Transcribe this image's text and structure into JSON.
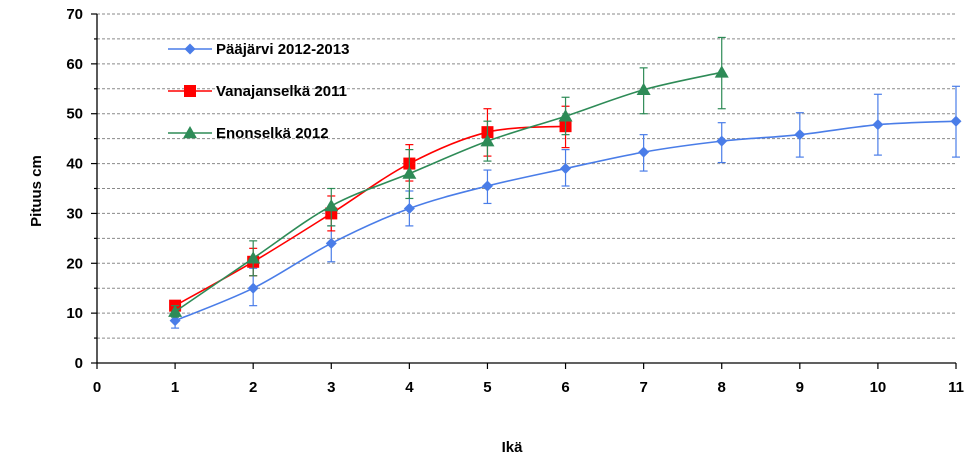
{
  "chart_data": {
    "type": "line",
    "title": "",
    "xlabel": "Ikä",
    "ylabel": "Pituus cm",
    "xlim": [
      0,
      11
    ],
    "ylim": [
      0,
      70
    ],
    "x_ticks": [
      "0",
      "1",
      "2",
      "3",
      "4",
      "5",
      "6",
      "7",
      "8",
      "9",
      "10",
      "11"
    ],
    "y_ticks": [
      "0",
      "10",
      "20",
      "30",
      "40",
      "50",
      "60",
      "70"
    ],
    "grid": "dashed horizontal every 5",
    "legend_position": "top-left",
    "series": [
      {
        "name": "Pääjärvi 2012-2013",
        "color": "#4a7de8",
        "marker": "diamond",
        "x": [
          1,
          2,
          3,
          4,
          5,
          6,
          7,
          8,
          9,
          10,
          11
        ],
        "y": [
          8.5,
          15,
          24,
          31,
          35.5,
          39,
          42.3,
          44.5,
          45.8,
          47.8,
          48.5
        ],
        "err_low": [
          7,
          11.5,
          20.3,
          27.5,
          32,
          35.5,
          38.5,
          40.2,
          41.3,
          41.7,
          41.3
        ],
        "err_high": [
          10,
          19,
          27.5,
          34.5,
          38.7,
          42.8,
          45.8,
          48.2,
          50.2,
          53.9,
          55.5
        ]
      },
      {
        "name": "Vanajanselkä 2011",
        "color": "#ff0000",
        "marker": "square",
        "x": [
          1,
          2,
          3,
          4,
          5,
          6
        ],
        "y": [
          11.5,
          20.3,
          30,
          40,
          46.3,
          47.5
        ],
        "err_low": [
          10.3,
          17.5,
          26.5,
          36.5,
          41.5,
          43.2
        ],
        "err_high": [
          12.5,
          23,
          33.5,
          43.8,
          51,
          51.5
        ]
      },
      {
        "name": "Enonselkä 2012",
        "color": "#2e8b57",
        "marker": "triangle",
        "x": [
          1,
          2,
          3,
          4,
          5,
          6,
          7,
          8
        ],
        "y": [
          10.3,
          21,
          31.5,
          38,
          44.5,
          49.5,
          54.8,
          58.3
        ],
        "err_low": [
          9.2,
          17.5,
          27.5,
          33,
          40.5,
          45.8,
          50,
          51
        ],
        "err_high": [
          11.5,
          24.5,
          35,
          42.8,
          48.5,
          53.3,
          59.2,
          65.3
        ]
      }
    ]
  }
}
